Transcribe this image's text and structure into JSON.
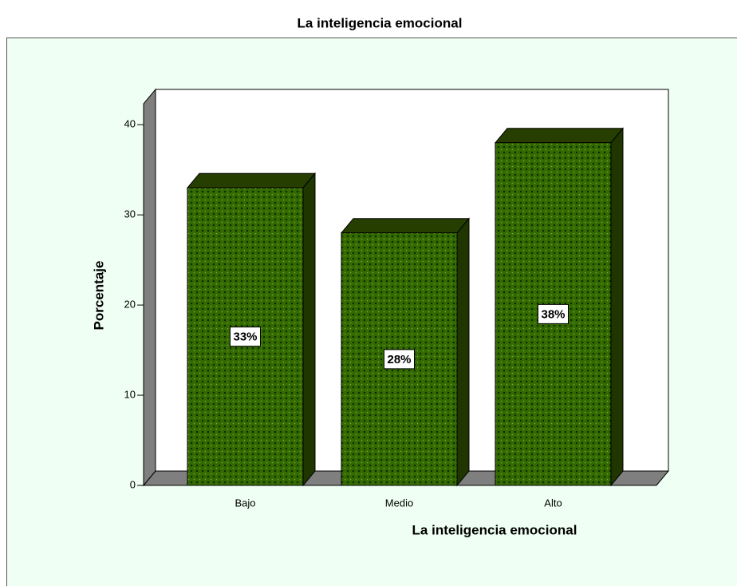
{
  "chart_data": {
    "type": "bar",
    "title": "La inteligencia emocional",
    "x_label": "La inteligencia emocional",
    "y_label": "Porcentaje",
    "categories": [
      "Bajo",
      "Medio",
      "Alto"
    ],
    "values": [
      33,
      28,
      38
    ],
    "value_labels": [
      "33%",
      "28%",
      "38%"
    ],
    "color": "#2f6400",
    "ylim": [
      0,
      44
    ],
    "yticks": [
      0,
      10,
      20,
      30,
      40
    ],
    "grid": false
  }
}
